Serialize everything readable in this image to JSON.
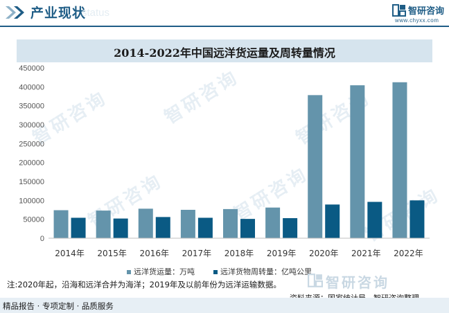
{
  "header": {
    "title": "产业现状",
    "ghost_text": "status",
    "brand_name": "智研咨询",
    "brand_url": "www.chyxx.com"
  },
  "watermark": "智研咨询",
  "colors": {
    "series1": "#6494ab",
    "series2": "#0a5a84",
    "accent": "#1f5d86",
    "title_band": "#d6e4ee"
  },
  "chart_data": {
    "type": "bar",
    "title": "2014-2022年中国远洋货运量及周转量情况",
    "categories": [
      "2014年",
      "2015年",
      "2016年",
      "2017年",
      "2018年",
      "2019年",
      "2020年",
      "2021年",
      "2022年"
    ],
    "series": [
      {
        "name": "远洋货运量：万吨",
        "values": [
          74000,
          73000,
          78000,
          75000,
          77000,
          81000,
          378000,
          404000,
          412000
        ]
      },
      {
        "name": "远洋货物周转量：亿吨公里",
        "values": [
          54000,
          52000,
          56000,
          54000,
          51000,
          53000,
          89000,
          96000,
          100000
        ]
      }
    ],
    "ylim": [
      0,
      450000
    ],
    "yticks": [
      "0",
      "50000",
      "100000",
      "150000",
      "200000",
      "250000",
      "300000",
      "350000",
      "400000",
      "450000"
    ],
    "grid": false,
    "legend_position": "bottom"
  },
  "note": "注:2020年起，沿海和远洋合并为海洋；2019年及以前年份为远洋运输数据。",
  "source": "资料来源：国家统计局、智研咨询整理",
  "footer": "精品报告 · 专项定制 · 品质服务"
}
